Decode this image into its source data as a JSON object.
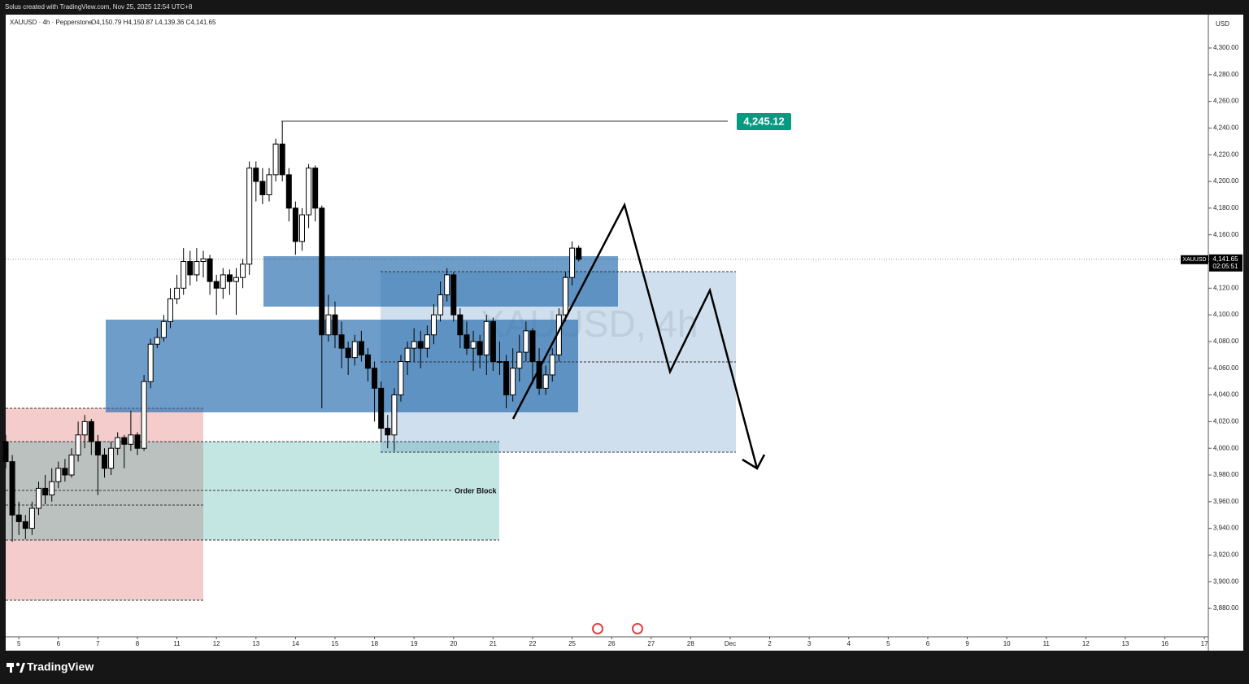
{
  "chart_data": {
    "type": "candlestick",
    "header": "Solus created with TradingView.com, Nov 25, 2025 12:54 UTC+8",
    "title": "XAUUSD · 4h · Pepperstone",
    "ohlc_text": "O4,150.79  H4,150.87  L4,139.36  C4,141.65",
    "watermark": "XAUUSD, 4h",
    "currency": "USD",
    "brand": "TradingView",
    "up_color": "#ffffff",
    "down_color": "#000000",
    "x": [
      -2,
      -1,
      0,
      1,
      2,
      3,
      4,
      5,
      6,
      7,
      8,
      9,
      10,
      11,
      12,
      13,
      14,
      15,
      16,
      17,
      18,
      19,
      20,
      21,
      22,
      23,
      24,
      25,
      26,
      27,
      28,
      29,
      30,
      31,
      32,
      33,
      34,
      35,
      36,
      37,
      38,
      39,
      40,
      41,
      42,
      43,
      44,
      45,
      46,
      47,
      48,
      49,
      50,
      51,
      52,
      53,
      54,
      55,
      56,
      57,
      58,
      59,
      60,
      61,
      62,
      63,
      64,
      65,
      66,
      67,
      68,
      69,
      70,
      71,
      72,
      73,
      74,
      75,
      76,
      77,
      78,
      79,
      80,
      81,
      82,
      83,
      84,
      85
    ],
    "open": [
      4005,
      3990,
      3950,
      3945,
      3940,
      3955,
      3970,
      3965,
      3975,
      3985,
      3980,
      3995,
      4010,
      4020,
      4005,
      3995,
      3985,
      4000,
      4008,
      4003,
      4010,
      4000,
      4050,
      4078,
      4083,
      4095,
      4112,
      4120,
      4140,
      4130,
      4140,
      4142,
      4125,
      4120,
      4130,
      4125,
      4128,
      4138,
      4210,
      4200,
      4190,
      4205,
      4228,
      4205,
      4180,
      4155,
      4175,
      4210,
      4180,
      4085,
      4100,
      4085,
      4075,
      4068,
      4080,
      4070,
      4060,
      4045,
      4015,
      4010,
      4040,
      4065,
      4075,
      4080,
      4075,
      4085,
      4100,
      4115,
      4130,
      4100,
      4085,
      4075,
      4080,
      4070,
      4095,
      4065,
      4065,
      4040,
      4060,
      4072,
      4088,
      4065,
      4045,
      4055,
      4070,
      4100,
      4128,
      4150
    ],
    "high": [
      4010,
      3995,
      3960,
      3950,
      3960,
      3975,
      3980,
      3985,
      3990,
      3992,
      4000,
      4020,
      4025,
      4022,
      4010,
      4000,
      4005,
      4012,
      4010,
      4028,
      4012,
      4055,
      4082,
      4090,
      4100,
      4120,
      4130,
      4150,
      4148,
      4150,
      4148,
      4145,
      4130,
      4135,
      4134,
      4135,
      4142,
      4215,
      4215,
      4210,
      4210,
      4232,
      4245,
      4210,
      4185,
      4180,
      4213,
      4212,
      4182,
      4115,
      4110,
      4095,
      4080,
      4085,
      4088,
      4075,
      4065,
      4050,
      4025,
      4045,
      4070,
      4080,
      4090,
      4088,
      4092,
      4108,
      4125,
      4135,
      4132,
      4105,
      4095,
      4088,
      4085,
      4100,
      4098,
      4080,
      4070,
      4075,
      4085,
      4095,
      4090,
      4075,
      4062,
      4075,
      4105,
      4132,
      4155,
      4152
    ],
    "low": [
      3985,
      3930,
      3935,
      3932,
      3935,
      3950,
      3958,
      3960,
      3970,
      3975,
      3978,
      3990,
      4000,
      3995,
      3965,
      3978,
      3980,
      3995,
      3985,
      3998,
      3995,
      3998,
      4045,
      4075,
      4080,
      4090,
      4108,
      4115,
      4122,
      4125,
      4128,
      4115,
      4100,
      4112,
      4115,
      4100,
      4120,
      4130,
      4185,
      4183,
      4185,
      4200,
      4200,
      4170,
      4145,
      4148,
      4165,
      4170,
      4030,
      4080,
      4075,
      4060,
      4055,
      4062,
      4065,
      4050,
      4020,
      4005,
      4000,
      3998,
      4035,
      4055,
      4065,
      4060,
      4068,
      4078,
      4095,
      4110,
      4095,
      4075,
      4070,
      4058,
      4060,
      4055,
      4058,
      4055,
      4030,
      4035,
      4050,
      4065,
      4048,
      4040,
      4040,
      4050,
      4065,
      4095,
      4122,
      4140
    ],
    "close": [
      3990,
      3950,
      3945,
      3940,
      3955,
      3970,
      3965,
      3975,
      3985,
      3980,
      3995,
      4010,
      4020,
      4005,
      3995,
      3985,
      4000,
      4008,
      4003,
      4010,
      4000,
      4050,
      4078,
      4083,
      4095,
      4112,
      4120,
      4140,
      4130,
      4140,
      4142,
      4125,
      4120,
      4130,
      4125,
      4128,
      4138,
      4210,
      4200,
      4190,
      4205,
      4228,
      4205,
      4180,
      4155,
      4175,
      4210,
      4180,
      4085,
      4100,
      4085,
      4075,
      4068,
      4080,
      4070,
      4060,
      4045,
      4015,
      4010,
      4040,
      4065,
      4075,
      4080,
      4075,
      4085,
      4100,
      4115,
      4130,
      4100,
      4085,
      4075,
      4080,
      4070,
      4095,
      4065,
      4065,
      4040,
      4060,
      4072,
      4088,
      4065,
      4045,
      4055,
      4070,
      4100,
      4128,
      4150,
      4141.65
    ],
    "xlim": [
      -2,
      180.6
    ],
    "xticks": [
      {
        "value": 0,
        "label": "5"
      },
      {
        "value": 6,
        "label": "6"
      },
      {
        "value": 12,
        "label": "7"
      },
      {
        "value": 18,
        "label": "8"
      },
      {
        "value": 24,
        "label": "11"
      },
      {
        "value": 30,
        "label": "12"
      },
      {
        "value": 36,
        "label": "13"
      },
      {
        "value": 42,
        "label": "14"
      },
      {
        "value": 48,
        "label": "15"
      },
      {
        "value": 54,
        "label": "18"
      },
      {
        "value": 60,
        "label": "19"
      },
      {
        "value": 66,
        "label": "20"
      },
      {
        "value": 72,
        "label": "21"
      },
      {
        "value": 78,
        "label": "22"
      },
      {
        "value": 84,
        "label": "25"
      },
      {
        "value": 90,
        "label": "26"
      },
      {
        "value": 96,
        "label": "27"
      },
      {
        "value": 102,
        "label": "28"
      },
      {
        "value": 108,
        "label": "Dec"
      },
      {
        "value": 114,
        "label": "2"
      },
      {
        "value": 120,
        "label": "3"
      },
      {
        "value": 126,
        "label": "4"
      },
      {
        "value": 132,
        "label": "5"
      },
      {
        "value": 138,
        "label": "6"
      },
      {
        "value": 144,
        "label": "9"
      },
      {
        "value": 150,
        "label": "10"
      },
      {
        "value": 156,
        "label": "11"
      },
      {
        "value": 162,
        "label": "12"
      },
      {
        "value": 168,
        "label": "13"
      },
      {
        "value": 174,
        "label": "16"
      },
      {
        "value": 180,
        "label": "17"
      }
    ],
    "ylim": [
      3858.7,
      4325
    ],
    "yticks": [
      {
        "value": 3880,
        "label": "3,880.00"
      },
      {
        "value": 3900,
        "label": "3,900.00"
      },
      {
        "value": 3920,
        "label": "3,920.00"
      },
      {
        "value": 3940,
        "label": "3,940.00"
      },
      {
        "value": 3960,
        "label": "3,960.00"
      },
      {
        "value": 3980,
        "label": "3,980.00"
      },
      {
        "value": 4000,
        "label": "4,000.00"
      },
      {
        "value": 4020,
        "label": "4,020.00"
      },
      {
        "value": 4040,
        "label": "4,040.00"
      },
      {
        "value": 4060,
        "label": "4,060.00"
      },
      {
        "value": 4080,
        "label": "4,080.00"
      },
      {
        "value": 4100,
        "label": "4,100.00"
      },
      {
        "value": 4120,
        "label": "4,120.00"
      },
      {
        "value": 4140,
        "label": "4,140.00"
      },
      {
        "value": 4160,
        "label": "4,160.00"
      },
      {
        "value": 4180,
        "label": "4,180.00"
      },
      {
        "value": 4200,
        "label": "4,200.00"
      },
      {
        "value": 4220,
        "label": "4,220.00"
      },
      {
        "value": 4240,
        "label": "4,240.00"
      },
      {
        "value": 4260,
        "label": "4,260.00"
      },
      {
        "value": 4280,
        "label": "4,280.00"
      },
      {
        "value": 4300,
        "label": "4,300.00"
      }
    ],
    "high_marker": {
      "value": 4245.12,
      "label": "4,245.12",
      "color": "#089981"
    },
    "last_price": {
      "value": 4141.65,
      "label": "4,141.65",
      "symbol": "XAUUSD",
      "countdown": "02:05:51"
    },
    "annotation": "Order Block"
  }
}
